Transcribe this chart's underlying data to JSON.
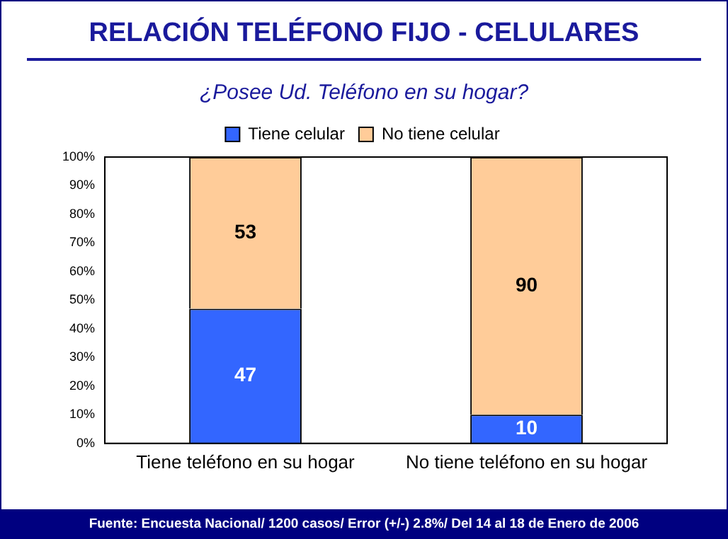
{
  "chart_data": {
    "type": "bar",
    "title": "RELACIÓN TELÉFONO FIJO - CELULARES",
    "subtitle": "¿Posee Ud. Teléfono en su hogar?",
    "categories": [
      "Tiene teléfono en su hogar",
      "No tiene teléfono en su hogar"
    ],
    "series": [
      {
        "name": "Tiene celular",
        "color": "#3366ff",
        "values": [
          47,
          10
        ]
      },
      {
        "name": "No tiene celular",
        "color": "#ffcc99",
        "values": [
          53,
          90
        ]
      }
    ],
    "stacked": true,
    "ylim": [
      0,
      100
    ],
    "yticks": [
      {
        "value": 0,
        "label": "0%"
      },
      {
        "value": 10,
        "label": "10%"
      },
      {
        "value": 20,
        "label": "20%"
      },
      {
        "value": 30,
        "label": "30%"
      },
      {
        "value": 40,
        "label": "40%"
      },
      {
        "value": 50,
        "label": "50%"
      },
      {
        "value": 60,
        "label": "60%"
      },
      {
        "value": 70,
        "label": "70%"
      },
      {
        "value": 80,
        "label": "80%"
      },
      {
        "value": 90,
        "label": "90%"
      },
      {
        "value": 100,
        "label": "100%"
      }
    ],
    "grid": false,
    "legend": "top",
    "data_labels": true,
    "annotations": [
      "Fuente: Encuesta Nacional/ 1200 casos/ Error (+/-) 2.8%/ Del 14 al 18 de Enero de 2006"
    ]
  }
}
